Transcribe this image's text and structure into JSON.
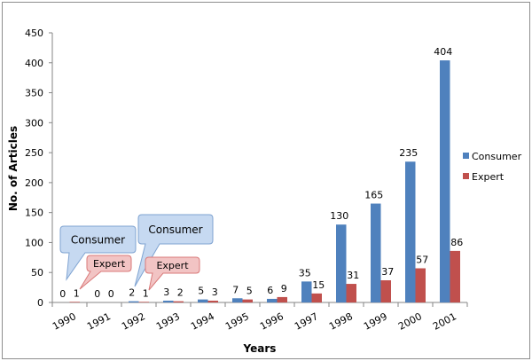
{
  "chart_data": {
    "type": "bar",
    "title": "",
    "xlabel": "Years",
    "ylabel": "No. of Articles",
    "ylim": [
      0,
      450
    ],
    "yticks": [
      0,
      50,
      100,
      150,
      200,
      250,
      300,
      350,
      400,
      450
    ],
    "grid": false,
    "legend_position": "right",
    "categories": [
      "1990",
      "1991",
      "1992",
      "1993",
      "1994",
      "1995",
      "1996",
      "1997",
      "1998",
      "1999",
      "2000",
      "2001"
    ],
    "series": [
      {
        "name": "Consumer",
        "color": "#4f81bd",
        "values": [
          0,
          0,
          2,
          3,
          5,
          7,
          6,
          35,
          130,
          165,
          235,
          404
        ]
      },
      {
        "name": "Expert",
        "color": "#c0504d",
        "values": [
          1,
          0,
          1,
          2,
          3,
          5,
          9,
          15,
          31,
          37,
          57,
          86
        ]
      }
    ],
    "annotations": [
      {
        "text": "Consumer",
        "type": "callout",
        "points_to": "1990 Consumer",
        "color": "#c6d9f1"
      },
      {
        "text": "Expert",
        "type": "callout",
        "points_to": "1990 Expert",
        "color": "#f2c4c4"
      },
      {
        "text": "Consumer",
        "type": "callout",
        "points_to": "1992 Consumer",
        "color": "#c6d9f1"
      },
      {
        "text": "Expert",
        "type": "callout",
        "points_to": "1992 Expert",
        "color": "#f2c4c4"
      }
    ]
  }
}
